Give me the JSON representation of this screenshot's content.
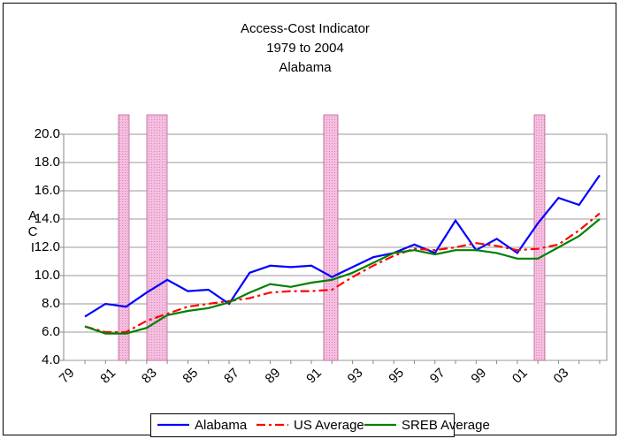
{
  "chart_data": {
    "type": "line",
    "title": [
      "Access-Cost Indicator",
      "1979 to 2004",
      "Alabama"
    ],
    "y_label": "ACI",
    "categories": [
      "79",
      null,
      "81",
      null,
      "83",
      null,
      "85",
      null,
      "87",
      null,
      "89",
      null,
      "91",
      null,
      "93",
      null,
      "95",
      null,
      "97",
      null,
      "99",
      null,
      "01",
      null,
      "03",
      null
    ],
    "series": [
      {
        "name": "Alabama",
        "color": "#0000ff",
        "dash": "solid",
        "values": [
          7.1,
          8.0,
          7.8,
          8.8,
          9.7,
          8.9,
          9.0,
          8.0,
          10.2,
          10.7,
          10.6,
          10.7,
          9.9,
          10.6,
          11.3,
          11.6,
          12.2,
          11.6,
          13.9,
          11.8,
          12.6,
          11.6,
          13.7,
          15.5,
          15.0,
          17.1
        ]
      },
      {
        "name": "US Average",
        "color": "#ff0000",
        "dash": "dashdot",
        "values": [
          6.4,
          6.0,
          6.0,
          6.8,
          7.3,
          7.8,
          8.0,
          8.2,
          8.4,
          8.8,
          8.9,
          8.9,
          9.0,
          9.9,
          10.7,
          11.4,
          11.9,
          11.8,
          12.0,
          12.3,
          12.1,
          11.8,
          11.9,
          12.2,
          13.2,
          14.4
        ]
      },
      {
        "name": "SREB Average",
        "color": "#008000",
        "dash": "solid",
        "values": [
          6.4,
          5.9,
          5.9,
          6.3,
          7.2,
          7.5,
          7.7,
          8.1,
          8.8,
          9.4,
          9.2,
          9.5,
          9.7,
          10.2,
          10.9,
          11.6,
          11.8,
          11.5,
          11.8,
          11.8,
          11.6,
          11.2,
          11.2,
          12.0,
          12.8,
          14.0
        ]
      }
    ],
    "ylim": [
      4,
      20
    ],
    "yticks": [
      {
        "value": 4,
        "label": "4.0"
      },
      {
        "value": 6,
        "label": "6.0"
      },
      {
        "value": 8,
        "label": "8.0"
      },
      {
        "value": 10,
        "label": "10.0"
      },
      {
        "value": 12,
        "label": "12.0"
      },
      {
        "value": 14,
        "label": "14.0"
      },
      {
        "value": 16,
        "label": "16.0"
      },
      {
        "value": 18,
        "label": "18.0"
      },
      {
        "value": 20,
        "label": "20.0"
      }
    ],
    "grid": true,
    "legend": "bottom"
  }
}
